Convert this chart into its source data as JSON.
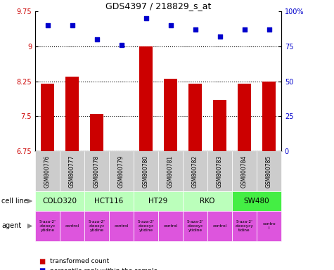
{
  "title": "GDS4397 / 218829_s_at",
  "samples": [
    "GSM800776",
    "GSM800777",
    "GSM800778",
    "GSM800779",
    "GSM800780",
    "GSM800781",
    "GSM800782",
    "GSM800783",
    "GSM800784",
    "GSM800785"
  ],
  "bar_values": [
    8.2,
    8.35,
    7.55,
    6.7,
    9.0,
    8.3,
    8.2,
    7.85,
    8.2,
    8.25
  ],
  "scatter_values": [
    90,
    90,
    80,
    76,
    95,
    90,
    87,
    82,
    87,
    87
  ],
  "ylim": [
    6.75,
    9.75
  ],
  "ylim2": [
    0,
    100
  ],
  "yticks": [
    6.75,
    7.5,
    8.25,
    9.0,
    9.75
  ],
  "yticks2": [
    0,
    25,
    50,
    75,
    100
  ],
  "ytick_labels": [
    "6.75",
    "7.5",
    "8.25",
    "9",
    "9.75"
  ],
  "ytick_labels2": [
    "0",
    "25",
    "50",
    "75",
    "100%"
  ],
  "bar_color": "#cc0000",
  "scatter_color": "#0000cc",
  "cell_lines": [
    {
      "name": "COLO320",
      "start": 0,
      "end": 2,
      "color": "#bbffbb"
    },
    {
      "name": "HCT116",
      "start": 2,
      "end": 4,
      "color": "#bbffbb"
    },
    {
      "name": "HT29",
      "start": 4,
      "end": 6,
      "color": "#bbffbb"
    },
    {
      "name": "RKO",
      "start": 6,
      "end": 8,
      "color": "#bbffbb"
    },
    {
      "name": "SW480",
      "start": 8,
      "end": 10,
      "color": "#44ee44"
    }
  ],
  "agents": [
    {
      "name": "5-aza-2'\n-deoxyc\nytidine",
      "start": 0,
      "end": 1,
      "color": "#dd55dd"
    },
    {
      "name": "control",
      "start": 1,
      "end": 2,
      "color": "#dd55dd"
    },
    {
      "name": "5-aza-2'\n-deoxyc\nytidine",
      "start": 2,
      "end": 3,
      "color": "#dd55dd"
    },
    {
      "name": "control",
      "start": 3,
      "end": 4,
      "color": "#dd55dd"
    },
    {
      "name": "5-aza-2'\n-deoxyc\nytidine",
      "start": 4,
      "end": 5,
      "color": "#dd55dd"
    },
    {
      "name": "control",
      "start": 5,
      "end": 6,
      "color": "#dd55dd"
    },
    {
      "name": "5-aza-2'\n-deoxyc\nytidine",
      "start": 6,
      "end": 7,
      "color": "#dd55dd"
    },
    {
      "name": "control",
      "start": 7,
      "end": 8,
      "color": "#dd55dd"
    },
    {
      "name": "5-aza-2'\n-deoxycy\ntidine",
      "start": 8,
      "end": 9,
      "color": "#dd55dd"
    },
    {
      "name": "contro\nl",
      "start": 9,
      "end": 10,
      "color": "#dd55dd"
    }
  ],
  "tick_bg_color": "#cccccc",
  "fig_width": 4.75,
  "fig_height": 3.84,
  "dpi": 100
}
